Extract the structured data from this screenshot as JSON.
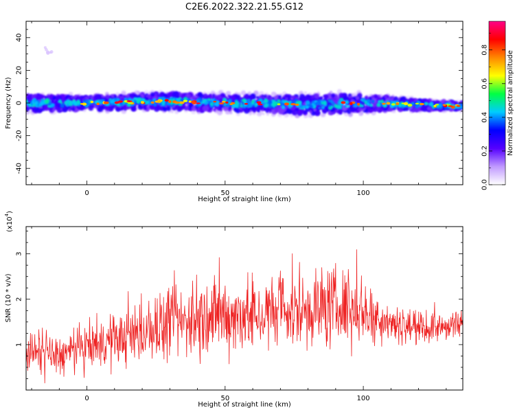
{
  "title": "C2E6.2022.322.21.55.G12",
  "colors": {
    "snr_line": "#ee2222",
    "frame": "#000000"
  },
  "chart_data": [
    {
      "type": "heatmap",
      "xlabel": "Height of straight line (km)",
      "ylabel": "Frequency (Hz)",
      "xlim": [
        -22,
        136
      ],
      "ylim": [
        -50,
        50
      ],
      "x_ticks": [
        0,
        50,
        100
      ],
      "y_ticks": [
        -40,
        -20,
        0,
        20,
        40
      ],
      "colorbar": {
        "label": "Normalized spectral amplitude",
        "range": [
          0,
          0.97
        ],
        "ticks": [
          "0.0",
          "0.2",
          "0.4",
          "0.6",
          "0.8"
        ],
        "colors": [
          "#ffffff",
          "#c099ff",
          "#5500ff",
          "#0000ff",
          "#00ccff",
          "#00ff44",
          "#ffff00",
          "#ff8800",
          "#ff0000",
          "#ff0088"
        ]
      },
      "band": {
        "center_hz": [
          [
            -22,
            0
          ],
          [
            0,
            0
          ],
          [
            30,
            1
          ],
          [
            50,
            0
          ],
          [
            80,
            -1
          ],
          [
            100,
            0
          ],
          [
            136,
            -2
          ]
        ],
        "half_width_hz": [
          [
            -22,
            5
          ],
          [
            0,
            4
          ],
          [
            30,
            5
          ],
          [
            60,
            5
          ],
          [
            90,
            6
          ],
          [
            110,
            4
          ],
          [
            136,
            2
          ]
        ],
        "outlier_cluster": {
          "x": -14,
          "y": 32
        }
      }
    },
    {
      "type": "line",
      "xlabel": "Height of straight line (km)",
      "ylabel": "SNR (10 * v/v)",
      "y_multiplier": "(x10",
      "y_multiplier_exp": "4",
      "y_multiplier_close": ")",
      "xlim": [
        -22,
        136
      ],
      "ylim": [
        0,
        3.6
      ],
      "x_ticks": [
        0,
        50,
        100
      ],
      "y_ticks": [
        1,
        2,
        3
      ],
      "envelope": {
        "x": [
          -22,
          -10,
          0,
          10,
          20,
          30,
          40,
          50,
          60,
          70,
          80,
          90,
          100,
          110,
          120,
          136
        ],
        "mean": [
          0.85,
          0.75,
          0.95,
          1.1,
          1.25,
          1.45,
          1.55,
          1.65,
          1.65,
          1.7,
          1.8,
          1.85,
          1.75,
          1.5,
          1.35,
          1.4
        ],
        "amplitude": [
          0.6,
          0.55,
          0.6,
          0.7,
          0.8,
          0.95,
          1.0,
          1.1,
          1.0,
          1.05,
          1.15,
          1.1,
          0.9,
          0.55,
          0.4,
          0.4
        ]
      }
    }
  ]
}
